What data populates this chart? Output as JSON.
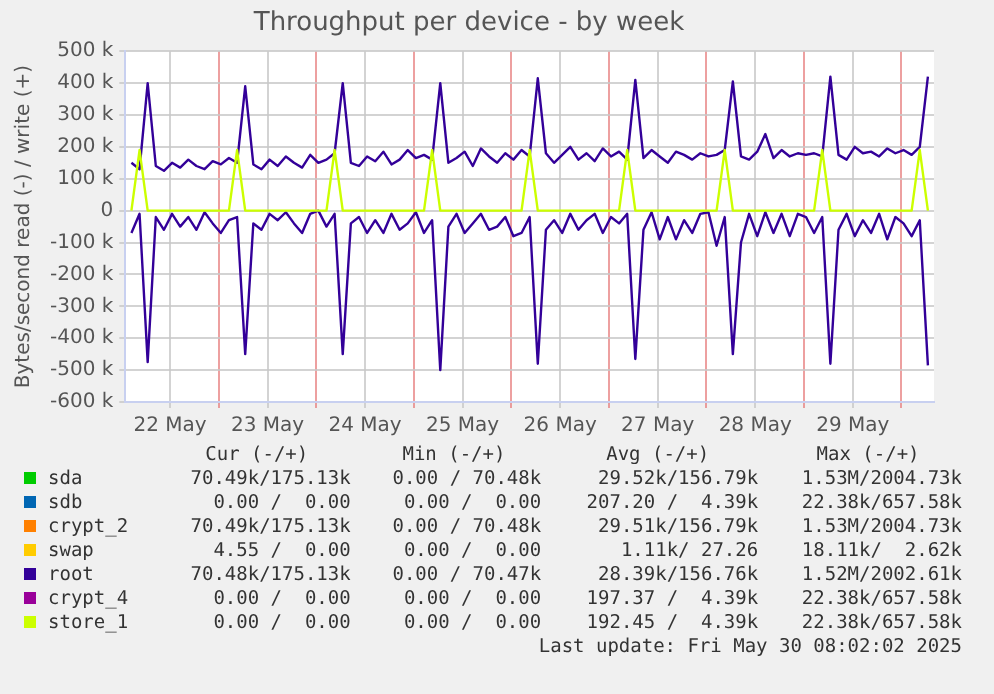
{
  "chart_data": [
    {
      "type": "line",
      "title": "Throughput per device - by week",
      "ylabel": "Bytes/second read (-) / write (+)",
      "x": [
        "2025-05-22T02:30",
        "2025-05-22T04:30",
        "2025-05-22T06:30",
        "2025-05-22T08:30",
        "2025-05-22T10:30",
        "2025-05-22T12:30",
        "2025-05-22T14:30",
        "2025-05-22T16:30",
        "2025-05-22T18:30",
        "2025-05-22T20:30",
        "2025-05-22T22:30",
        "2025-05-23T00:30",
        "2025-05-23T02:30",
        "2025-05-23T04:30",
        "2025-05-23T06:30",
        "2025-05-23T08:30",
        "2025-05-23T10:30",
        "2025-05-23T12:30",
        "2025-05-23T14:30",
        "2025-05-23T16:30",
        "2025-05-23T18:30",
        "2025-05-23T20:30",
        "2025-05-23T22:30",
        "2025-05-24T00:30",
        "2025-05-24T02:30",
        "2025-05-24T04:30",
        "2025-05-24T06:30",
        "2025-05-24T08:30",
        "2025-05-24T10:30",
        "2025-05-24T12:30",
        "2025-05-24T14:30",
        "2025-05-24T16:30",
        "2025-05-24T18:30",
        "2025-05-24T20:30",
        "2025-05-24T22:30",
        "2025-05-25T00:30",
        "2025-05-25T02:30",
        "2025-05-25T04:30",
        "2025-05-25T06:30",
        "2025-05-25T08:30",
        "2025-05-25T10:30",
        "2025-05-25T12:30",
        "2025-05-25T14:30",
        "2025-05-25T16:30",
        "2025-05-25T18:30",
        "2025-05-25T20:30",
        "2025-05-25T22:30",
        "2025-05-26T00:30",
        "2025-05-26T02:30",
        "2025-05-26T04:30",
        "2025-05-26T06:30",
        "2025-05-26T08:30",
        "2025-05-26T10:30",
        "2025-05-26T12:30",
        "2025-05-26T14:30",
        "2025-05-26T16:30",
        "2025-05-26T18:30",
        "2025-05-26T20:30",
        "2025-05-26T22:30",
        "2025-05-27T00:30",
        "2025-05-27T02:30",
        "2025-05-27T04:30",
        "2025-05-27T06:30",
        "2025-05-27T08:30",
        "2025-05-27T10:30",
        "2025-05-27T12:30",
        "2025-05-27T14:30",
        "2025-05-27T16:30",
        "2025-05-27T18:30",
        "2025-05-27T20:30",
        "2025-05-27T22:30",
        "2025-05-28T00:30",
        "2025-05-28T02:30",
        "2025-05-28T04:30",
        "2025-05-28T06:30",
        "2025-05-28T08:30",
        "2025-05-28T10:30",
        "2025-05-28T12:30",
        "2025-05-28T14:30",
        "2025-05-28T16:30",
        "2025-05-28T18:30",
        "2025-05-28T20:30",
        "2025-05-28T22:30",
        "2025-05-29T00:30",
        "2025-05-29T02:30",
        "2025-05-29T04:30",
        "2025-05-29T06:30",
        "2025-05-29T08:30",
        "2025-05-29T10:30",
        "2025-05-29T12:30",
        "2025-05-29T14:30",
        "2025-05-29T16:30",
        "2025-05-29T18:30",
        "2025-05-29T20:30",
        "2025-05-29T22:30",
        "2025-05-30T00:30",
        "2025-05-30T02:30",
        "2025-05-30T04:30",
        "2025-05-30T06:30"
      ],
      "series": [
        {
          "color": "#ccff00",
          "values": [
            0,
            190000,
            0,
            0,
            0,
            0,
            0,
            0,
            0,
            0,
            0,
            0,
            0,
            190000,
            0,
            0,
            0,
            0,
            0,
            0,
            0,
            0,
            0,
            0,
            0,
            190000,
            0,
            0,
            0,
            0,
            0,
            0,
            0,
            0,
            0,
            0,
            0,
            190000,
            0,
            0,
            0,
            0,
            0,
            0,
            0,
            0,
            0,
            0,
            0,
            190000,
            0,
            0,
            0,
            0,
            0,
            0,
            0,
            0,
            0,
            0,
            0,
            190000,
            0,
            0,
            0,
            0,
            0,
            0,
            0,
            0,
            0,
            0,
            0,
            190000,
            0,
            0,
            0,
            0,
            0,
            0,
            0,
            0,
            0,
            0,
            0,
            190000,
            0,
            0,
            0,
            0,
            0,
            0,
            0,
            0,
            0,
            0,
            0,
            190000,
            0
          ]
        },
        {
          "color": "#330099",
          "values": [
            150000,
            130000,
            400000,
            140000,
            125000,
            150000,
            135000,
            160000,
            140000,
            130000,
            155000,
            145000,
            165000,
            150000,
            390000,
            145000,
            130000,
            160000,
            140000,
            170000,
            150000,
            135000,
            175000,
            150000,
            160000,
            180000,
            400000,
            150000,
            140000,
            170000,
            155000,
            185000,
            145000,
            160000,
            190000,
            165000,
            175000,
            160000,
            400000,
            150000,
            165000,
            185000,
            140000,
            195000,
            170000,
            150000,
            180000,
            160000,
            190000,
            170000,
            415000,
            180000,
            150000,
            175000,
            200000,
            160000,
            180000,
            155000,
            195000,
            170000,
            185000,
            160000,
            410000,
            165000,
            190000,
            170000,
            150000,
            185000,
            175000,
            160000,
            180000,
            170000,
            175000,
            190000,
            405000,
            170000,
            160000,
            185000,
            240000,
            165000,
            190000,
            170000,
            180000,
            175000,
            180000,
            170000,
            420000,
            175000,
            160000,
            200000,
            180000,
            185000,
            170000,
            195000,
            180000,
            190000,
            175000,
            200000,
            420000
          ]
        },
        {
          "color": "#330099",
          "values": [
            -70000,
            -10000,
            -475000,
            -20000,
            -60000,
            -10000,
            -50000,
            -20000,
            -60000,
            -5000,
            -40000,
            -70000,
            -30000,
            -20000,
            -450000,
            -40000,
            -60000,
            -10000,
            -30000,
            -5000,
            -40000,
            -70000,
            -10000,
            0,
            -50000,
            -10000,
            -450000,
            -40000,
            -20000,
            -70000,
            -30000,
            -70000,
            -10000,
            -60000,
            -40000,
            -5000,
            -70000,
            -30000,
            -500000,
            -50000,
            -10000,
            -70000,
            -40000,
            -10000,
            -60000,
            -50000,
            -20000,
            -80000,
            -70000,
            -20000,
            -480000,
            -60000,
            -30000,
            -70000,
            -10000,
            -60000,
            -30000,
            -10000,
            -70000,
            -20000,
            -40000,
            -10000,
            -465000,
            -60000,
            -5000,
            -90000,
            -20000,
            -90000,
            -30000,
            -70000,
            -10000,
            -5000,
            -110000,
            -20000,
            -450000,
            -100000,
            -10000,
            -80000,
            -5000,
            -70000,
            -10000,
            -80000,
            -10000,
            -20000,
            -70000,
            -20000,
            -480000,
            -60000,
            -10000,
            -80000,
            -30000,
            -70000,
            -10000,
            -90000,
            -20000,
            -40000,
            -80000,
            -30000,
            -485000
          ]
        }
      ],
      "xlim": [
        "2025-05-22T01:00",
        "2025-05-30T08:00"
      ],
      "xticks": [
        {
          "value": "2025-05-22T12:00",
          "label": "22 May"
        },
        {
          "value": "2025-05-23",
          "label": null
        },
        {
          "value": "2025-05-23T12:00",
          "label": "23 May"
        },
        {
          "value": "2025-05-24",
          "label": null
        },
        {
          "value": "2025-05-24T12:00",
          "label": "24 May"
        },
        {
          "value": "2025-05-25",
          "label": null
        },
        {
          "value": "2025-05-25T12:00",
          "label": "25 May"
        },
        {
          "value": "2025-05-26",
          "label": null
        },
        {
          "value": "2025-05-26T12:00",
          "label": "26 May"
        },
        {
          "value": "2025-05-27",
          "label": null
        },
        {
          "value": "2025-05-27T12:00",
          "label": "27 May"
        },
        {
          "value": "2025-05-28",
          "label": null
        },
        {
          "value": "2025-05-28T12:00",
          "label": "28 May"
        },
        {
          "value": "2025-05-29",
          "label": null
        },
        {
          "value": "2025-05-29T12:00",
          "label": "29 May"
        },
        {
          "value": "2025-05-30",
          "label": null
        }
      ],
      "ylim": [
        -600000,
        500000
      ],
      "yticks": [
        {
          "value": -600000,
          "label": "-600 k"
        },
        {
          "value": -500000,
          "label": "-500 k"
        },
        {
          "value": -400000,
          "label": "-400 k"
        },
        {
          "value": -300000,
          "label": "-300 k"
        },
        {
          "value": -200000,
          "label": "-200 k"
        },
        {
          "value": -100000,
          "label": "-100 k"
        },
        {
          "value": 0,
          "label": "0"
        },
        {
          "value": 100000,
          "label": "100 k"
        },
        {
          "value": 200000,
          "label": "200 k"
        },
        {
          "value": 300000,
          "label": "300 k"
        },
        {
          "value": 400000,
          "label": "400 k"
        },
        {
          "value": 500000,
          "label": "500 k"
        }
      ],
      "grid": true,
      "marker": "none",
      "line_style": "solid"
    },
    {
      "type": "other",
      "categories": [
        "Cur (-/+)",
        "Min (-/+)",
        "Avg (-/+)",
        "Max (-/+)"
      ],
      "y_categories": [
        "sda",
        "sdb",
        "crypt_2",
        "swap",
        "root",
        "crypt_4",
        "store_1"
      ],
      "colors": [
        "#00cc00",
        "#0066b3",
        "#ff8000",
        "#ffcc00",
        "#330099",
        "#990099",
        "#ccff00"
      ],
      "cell_labels": [
        [
          "70.49k/175.13k",
          "0.00 / 70.48k",
          "29.52k/156.79k",
          "1.53M/2004.73k"
        ],
        [
          "0.00 /  0.00",
          "0.00 /  0.00",
          "207.20 /  4.39k",
          "22.38k/657.58k"
        ],
        [
          "70.49k/175.13k",
          "0.00 / 70.48k",
          "29.51k/156.79k",
          "1.53M/2004.73k"
        ],
        [
          "4.55 /  0.00",
          "0.00 /  0.00",
          "1.11k/ 27.26",
          "18.11k/  2.62k"
        ],
        [
          "70.48k/175.13k",
          "0.00 / 70.47k",
          "28.39k/156.76k",
          "1.52M/2002.61k"
        ],
        [
          "0.00 /  0.00",
          "0.00 /  0.00",
          "197.37 /  4.39k",
          "22.38k/657.58k"
        ],
        [
          "0.00 /  0.00",
          "0.00 /  0.00",
          "192.45 /  4.39k",
          "22.38k/657.58k"
        ]
      ],
      "annotations": [
        "Last update: Fri May 30 08:02:02 2025"
      ]
    }
  ]
}
